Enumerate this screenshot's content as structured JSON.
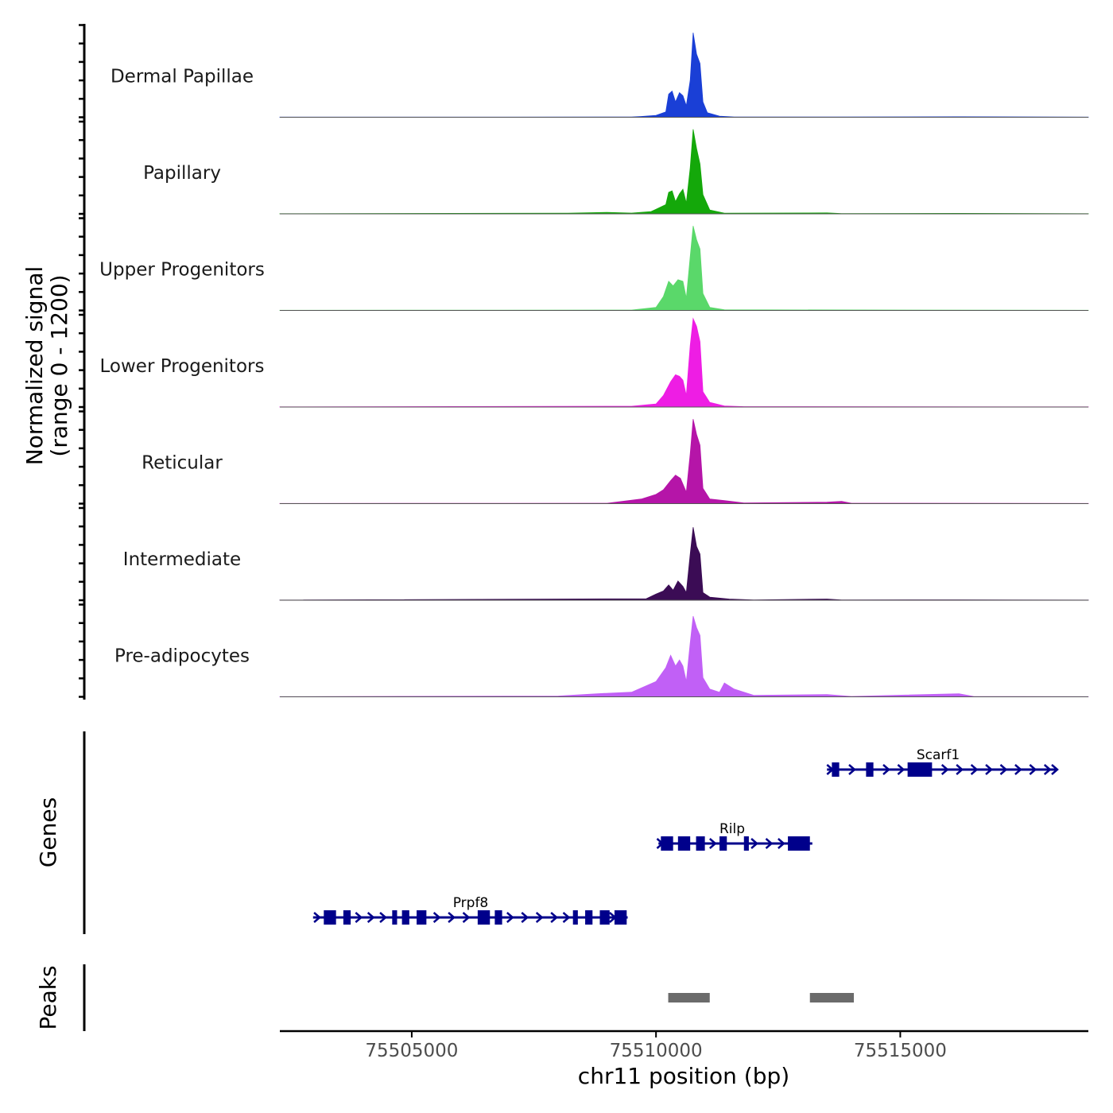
{
  "chart_data": {
    "type": "area",
    "y_axis_title_line1": "Normalized signal",
    "y_axis_title_line2": "(range 0 - 1200)",
    "ylim": [
      0,
      1200
    ],
    "x_axis_title": "chr11 position (bp)",
    "xlim": [
      75502300,
      75518850
    ],
    "x_ticks": [
      {
        "value": 75505000,
        "label": "75505000"
      },
      {
        "value": 75510000,
        "label": "75510000"
      },
      {
        "value": 75515000,
        "label": "75515000"
      }
    ],
    "series": [
      {
        "name": "Dermal Papillae",
        "color": "#1a3fd6",
        "points": [
          [
            75502300,
            2
          ],
          [
            75509500,
            3
          ],
          [
            75509700,
            10
          ],
          [
            75510000,
            25
          ],
          [
            75510200,
            70
          ],
          [
            75510260,
            300
          ],
          [
            75510330,
            340
          ],
          [
            75510400,
            200
          ],
          [
            75510480,
            320
          ],
          [
            75510550,
            280
          ],
          [
            75510620,
            150
          ],
          [
            75510700,
            480
          ],
          [
            75510760,
            1100
          ],
          [
            75510830,
            820
          ],
          [
            75510900,
            700
          ],
          [
            75510960,
            200
          ],
          [
            75511050,
            60
          ],
          [
            75511300,
            15
          ],
          [
            75511600,
            3
          ],
          [
            75513500,
            4
          ],
          [
            75513700,
            3
          ],
          [
            75516200,
            6
          ],
          [
            75518850,
            2
          ]
        ]
      },
      {
        "name": "Papillary",
        "color": "#14a80a",
        "points": [
          [
            75502300,
            2
          ],
          [
            75508200,
            8
          ],
          [
            75509000,
            20
          ],
          [
            75509500,
            10
          ],
          [
            75509900,
            30
          ],
          [
            75510000,
            60
          ],
          [
            75510200,
            120
          ],
          [
            75510260,
            280
          ],
          [
            75510330,
            300
          ],
          [
            75510400,
            160
          ],
          [
            75510480,
            260
          ],
          [
            75510550,
            320
          ],
          [
            75510620,
            140
          ],
          [
            75510700,
            600
          ],
          [
            75510760,
            1100
          ],
          [
            75510830,
            850
          ],
          [
            75510900,
            650
          ],
          [
            75510960,
            250
          ],
          [
            75511100,
            50
          ],
          [
            75511400,
            8
          ],
          [
            75513500,
            12
          ],
          [
            75513800,
            3
          ],
          [
            75516200,
            6
          ],
          [
            75518850,
            2
          ]
        ]
      },
      {
        "name": "Upper Progenitors",
        "color": "#5ad86a",
        "points": [
          [
            75502300,
            2
          ],
          [
            75509500,
            5
          ],
          [
            75510000,
            40
          ],
          [
            75510150,
            180
          ],
          [
            75510260,
            380
          ],
          [
            75510350,
            320
          ],
          [
            75510450,
            400
          ],
          [
            75510550,
            380
          ],
          [
            75510620,
            160
          ],
          [
            75510700,
            700
          ],
          [
            75510760,
            1100
          ],
          [
            75510830,
            920
          ],
          [
            75510900,
            800
          ],
          [
            75510960,
            220
          ],
          [
            75511100,
            40
          ],
          [
            75511400,
            8
          ],
          [
            75518850,
            2
          ]
        ]
      },
      {
        "name": "Lower Progenitors",
        "color": "#ee1de4",
        "points": [
          [
            75502300,
            2
          ],
          [
            75509500,
            10
          ],
          [
            75510000,
            40
          ],
          [
            75510150,
            150
          ],
          [
            75510300,
            330
          ],
          [
            75510400,
            420
          ],
          [
            75510480,
            400
          ],
          [
            75510550,
            350
          ],
          [
            75510620,
            150
          ],
          [
            75510700,
            800
          ],
          [
            75510760,
            1150
          ],
          [
            75510830,
            1050
          ],
          [
            75510900,
            850
          ],
          [
            75510960,
            200
          ],
          [
            75511100,
            60
          ],
          [
            75511400,
            15
          ],
          [
            75511800,
            5
          ],
          [
            75518850,
            2
          ]
        ]
      },
      {
        "name": "Reticular",
        "color": "#b515a8",
        "points": [
          [
            75502300,
            2
          ],
          [
            75509000,
            5
          ],
          [
            75509700,
            60
          ],
          [
            75510000,
            120
          ],
          [
            75510150,
            180
          ],
          [
            75510300,
            300
          ],
          [
            75510400,
            370
          ],
          [
            75510500,
            330
          ],
          [
            75510620,
            150
          ],
          [
            75510700,
            650
          ],
          [
            75510760,
            1100
          ],
          [
            75510830,
            900
          ],
          [
            75510900,
            760
          ],
          [
            75510960,
            200
          ],
          [
            75511100,
            60
          ],
          [
            75511400,
            40
          ],
          [
            75511800,
            8
          ],
          [
            75513500,
            20
          ],
          [
            75513800,
            30
          ],
          [
            75514000,
            5
          ],
          [
            75518850,
            2
          ]
        ]
      },
      {
        "name": "Intermediate",
        "color": "#3b0c55",
        "points": [
          [
            75502300,
            2
          ],
          [
            75509800,
            20
          ],
          [
            75510000,
            80
          ],
          [
            75510150,
            120
          ],
          [
            75510260,
            200
          ],
          [
            75510350,
            130
          ],
          [
            75510450,
            250
          ],
          [
            75510550,
            180
          ],
          [
            75510620,
            100
          ],
          [
            75510700,
            600
          ],
          [
            75510760,
            950
          ],
          [
            75510830,
            700
          ],
          [
            75510900,
            600
          ],
          [
            75510960,
            100
          ],
          [
            75511100,
            40
          ],
          [
            75511500,
            15
          ],
          [
            75512000,
            3
          ],
          [
            75513500,
            15
          ],
          [
            75513800,
            3
          ],
          [
            75516200,
            5
          ],
          [
            75518850,
            2
          ]
        ]
      },
      {
        "name": "Pre-adipocytes",
        "color": "#c160f6",
        "points": [
          [
            75502300,
            2
          ],
          [
            75508000,
            10
          ],
          [
            75508800,
            40
          ],
          [
            75509500,
            60
          ],
          [
            75510000,
            200
          ],
          [
            75510200,
            380
          ],
          [
            75510300,
            540
          ],
          [
            75510400,
            400
          ],
          [
            75510480,
            480
          ],
          [
            75510550,
            400
          ],
          [
            75510620,
            200
          ],
          [
            75510700,
            700
          ],
          [
            75510760,
            1050
          ],
          [
            75510830,
            900
          ],
          [
            75510900,
            800
          ],
          [
            75510960,
            250
          ],
          [
            75511100,
            100
          ],
          [
            75511300,
            60
          ],
          [
            75511400,
            180
          ],
          [
            75511600,
            100
          ],
          [
            75512000,
            20
          ],
          [
            75513500,
            30
          ],
          [
            75514000,
            5
          ],
          [
            75516200,
            40
          ],
          [
            75516500,
            5
          ],
          [
            75518850,
            2
          ]
        ]
      }
    ],
    "genes_track": {
      "title": "Genes",
      "color": "#00008b",
      "genes": [
        {
          "name": "Scarf1",
          "start": 75513500,
          "end": 75518200,
          "row": 0,
          "exons": [
            [
              75513600,
              75513750
            ],
            [
              75514300,
              75514450
            ],
            [
              75515150,
              75515650
            ]
          ],
          "arrows": [
            75513550,
            75514000,
            75514700,
            75515000,
            75515900,
            75516200,
            75516500,
            75516800,
            75517100,
            75517400,
            75517700,
            75518000,
            75518150
          ]
        },
        {
          "name": "Rilp",
          "start": 75510050,
          "end": 75513200,
          "row": 1,
          "exons": [
            [
              75510100,
              75510350
            ],
            [
              75510450,
              75510700
            ],
            [
              75510820,
              75511000
            ],
            [
              75511300,
              75511450
            ],
            [
              75511800,
              75511900
            ],
            [
              75512700,
              75513150
            ]
          ],
          "arrows": [
            75510070,
            75511150,
            75512000,
            75512300,
            75512550
          ]
        },
        {
          "name": "Prpf8",
          "start": 75502980,
          "end": 75509420,
          "row": 2,
          "exons": [
            [
              75503200,
              75503450
            ],
            [
              75503600,
              75503750
            ],
            [
              75504600,
              75504700
            ],
            [
              75504800,
              75504950
            ],
            [
              75505100,
              75505300
            ],
            [
              75506350,
              75506600
            ],
            [
              75506700,
              75506850
            ],
            [
              75508300,
              75508400
            ],
            [
              75508550,
              75508700
            ],
            [
              75508850,
              75509050
            ],
            [
              75509150,
              75509400
            ]
          ],
          "arrows": [
            75503050,
            75503900,
            75504150,
            75504400,
            75505500,
            75505800,
            75506100,
            75507000,
            75507300,
            75507600,
            75507900,
            75508150,
            75509100
          ]
        }
      ]
    },
    "peaks_track": {
      "title": "Peaks",
      "color": "#6b6b6b",
      "peaks": [
        [
          75510250,
          75511100
        ],
        [
          75513150,
          75514050
        ]
      ]
    }
  }
}
